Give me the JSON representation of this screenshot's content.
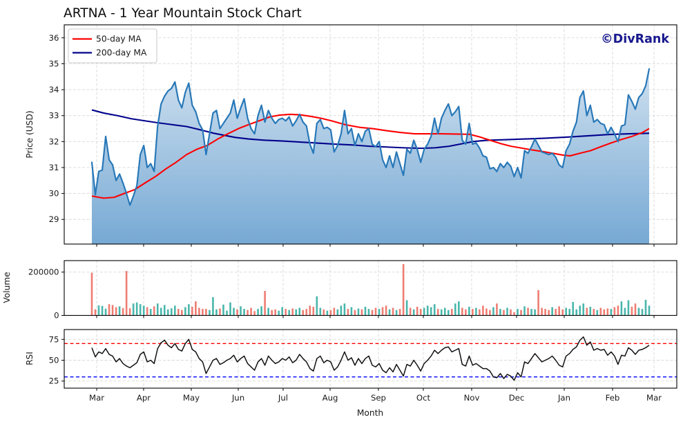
{
  "title": "ARTNA - 1 Year Mountain Stock Chart",
  "watermark": "©DivRank",
  "legend": [
    {
      "label": "50-day MA",
      "color": "#ff0000"
    },
    {
      "label": "200-day MA",
      "color": "#00008b"
    }
  ],
  "x_axis": {
    "label": "Month",
    "ticks": [
      {
        "label": "Mar",
        "t": 0.0087
      },
      {
        "label": "Apr",
        "t": 0.0929
      },
      {
        "label": "May",
        "t": 0.1784
      },
      {
        "label": "Jun",
        "t": 0.2627
      },
      {
        "label": "Jul",
        "t": 0.3432
      },
      {
        "label": "Aug",
        "t": 0.4275
      },
      {
        "label": "Sep",
        "t": 0.5142
      },
      {
        "label": "Oct",
        "t": 0.5948
      },
      {
        "label": "Nov",
        "t": 0.6815
      },
      {
        "label": "Dec",
        "t": 0.7621
      },
      {
        "label": "Jan",
        "t": 0.8476
      },
      {
        "label": "Feb",
        "t": 0.9343
      },
      {
        "label": "Mar",
        "t": 1.0087
      }
    ]
  },
  "chart_data": [
    {
      "type": "area",
      "name": "price",
      "ylabel": "Price (USD)",
      "ylim": [
        28.05,
        36.5
      ],
      "yticks": [
        29,
        30,
        31,
        32,
        33,
        34,
        35,
        36
      ],
      "price_line_color": "#2878b8",
      "fill_top": "#cfe0ef",
      "fill_bottom": "#76a9d4",
      "values": [
        31.2,
        29.95,
        30.85,
        30.9,
        32.2,
        31.3,
        31.1,
        30.5,
        30.75,
        30.4,
        30.0,
        29.55,
        29.9,
        30.3,
        31.5,
        31.85,
        31.0,
        31.15,
        30.85,
        32.6,
        33.45,
        33.75,
        33.95,
        34.05,
        34.3,
        33.6,
        33.3,
        33.9,
        34.25,
        33.4,
        33.15,
        32.7,
        32.45,
        31.5,
        32.3,
        33.1,
        33.2,
        32.5,
        32.7,
        32.9,
        33.1,
        33.6,
        32.9,
        33.3,
        33.65,
        32.9,
        32.5,
        32.3,
        33.0,
        33.4,
        32.75,
        33.2,
        32.9,
        32.7,
        32.85,
        32.9,
        32.8,
        32.95,
        32.6,
        32.8,
        33.05,
        32.75,
        32.6,
        31.9,
        31.55,
        32.7,
        32.85,
        32.5,
        32.55,
        32.45,
        31.6,
        31.85,
        32.3,
        33.2,
        32.3,
        32.5,
        31.85,
        32.3,
        32.0,
        32.4,
        32.5,
        31.9,
        31.8,
        32.0,
        31.3,
        31.0,
        31.45,
        31.0,
        31.6,
        31.15,
        30.7,
        31.7,
        31.55,
        32.05,
        31.7,
        31.2,
        31.7,
        31.9,
        32.2,
        32.9,
        32.3,
        32.9,
        33.2,
        33.45,
        33.0,
        33.15,
        33.35,
        32.05,
        31.9,
        32.7,
        31.9,
        31.95,
        31.75,
        31.45,
        31.4,
        30.95,
        31.0,
        30.85,
        31.15,
        31.0,
        31.2,
        31.05,
        30.65,
        31.0,
        30.6,
        31.65,
        31.55,
        31.8,
        32.1,
        31.85,
        31.6,
        31.55,
        31.5,
        31.55,
        31.4,
        31.1,
        31.0,
        31.65,
        31.9,
        32.4,
        32.75,
        33.7,
        33.95,
        33.0,
        33.4,
        32.75,
        32.85,
        32.7,
        32.65,
        32.3,
        32.55,
        32.3,
        32.0,
        32.6,
        32.65,
        33.8,
        33.55,
        33.25,
        33.7,
        33.85,
        34.15,
        34.8
      ],
      "ma50": {
        "name": "50-day MA",
        "color": "#ff0000",
        "points": [
          [
            0,
            29.9
          ],
          [
            0.021,
            29.82
          ],
          [
            0.04,
            29.85
          ],
          [
            0.058,
            30.0
          ],
          [
            0.077,
            30.15
          ],
          [
            0.095,
            30.4
          ],
          [
            0.114,
            30.65
          ],
          [
            0.133,
            30.95
          ],
          [
            0.151,
            31.2
          ],
          [
            0.17,
            31.5
          ],
          [
            0.188,
            31.7
          ],
          [
            0.207,
            31.85
          ],
          [
            0.226,
            32.1
          ],
          [
            0.244,
            32.3
          ],
          [
            0.263,
            32.5
          ],
          [
            0.281,
            32.65
          ],
          [
            0.3,
            32.8
          ],
          [
            0.319,
            32.95
          ],
          [
            0.337,
            33.02
          ],
          [
            0.356,
            33.05
          ],
          [
            0.374,
            33.03
          ],
          [
            0.393,
            32.97
          ],
          [
            0.411,
            32.9
          ],
          [
            0.43,
            32.8
          ],
          [
            0.455,
            32.65
          ],
          [
            0.48,
            32.55
          ],
          [
            0.504,
            32.5
          ],
          [
            0.529,
            32.42
          ],
          [
            0.554,
            32.35
          ],
          [
            0.579,
            32.3
          ],
          [
            0.628,
            32.3
          ],
          [
            0.678,
            32.28
          ],
          [
            0.696,
            32.18
          ],
          [
            0.715,
            32.05
          ],
          [
            0.734,
            31.92
          ],
          [
            0.752,
            31.82
          ],
          [
            0.771,
            31.75
          ],
          [
            0.789,
            31.68
          ],
          [
            0.808,
            31.62
          ],
          [
            0.827,
            31.55
          ],
          [
            0.845,
            31.48
          ],
          [
            0.858,
            31.45
          ],
          [
            0.876,
            31.55
          ],
          [
            0.895,
            31.65
          ],
          [
            0.913,
            31.8
          ],
          [
            0.932,
            31.95
          ],
          [
            0.95,
            32.08
          ],
          [
            0.969,
            32.2
          ],
          [
            0.988,
            32.35
          ],
          [
            1,
            32.5
          ]
        ]
      },
      "ma200": {
        "name": "200-day MA",
        "color": "#00008b",
        "points": [
          [
            0,
            33.22
          ],
          [
            0.021,
            33.1
          ],
          [
            0.046,
            33.0
          ],
          [
            0.071,
            32.88
          ],
          [
            0.095,
            32.8
          ],
          [
            0.12,
            32.72
          ],
          [
            0.145,
            32.65
          ],
          [
            0.17,
            32.58
          ],
          [
            0.195,
            32.45
          ],
          [
            0.219,
            32.32
          ],
          [
            0.238,
            32.24
          ],
          [
            0.257,
            32.16
          ],
          [
            0.281,
            32.1
          ],
          [
            0.312,
            32.05
          ],
          [
            0.343,
            32.02
          ],
          [
            0.374,
            31.98
          ],
          [
            0.405,
            31.94
          ],
          [
            0.436,
            31.9
          ],
          [
            0.467,
            31.87
          ],
          [
            0.498,
            31.82
          ],
          [
            0.529,
            31.79
          ],
          [
            0.56,
            31.76
          ],
          [
            0.591,
            31.74
          ],
          [
            0.616,
            31.76
          ],
          [
            0.641,
            31.82
          ],
          [
            0.665,
            31.92
          ],
          [
            0.684,
            32.0
          ],
          [
            0.709,
            32.05
          ],
          [
            0.74,
            32.07
          ],
          [
            0.777,
            32.1
          ],
          [
            0.814,
            32.13
          ],
          [
            0.851,
            32.17
          ],
          [
            0.889,
            32.22
          ],
          [
            0.926,
            32.27
          ],
          [
            0.963,
            32.3
          ],
          [
            1,
            32.32
          ]
        ]
      }
    },
    {
      "type": "bar",
      "name": "volume",
      "ylabel": "Volume",
      "ylim": [
        0,
        253000
      ],
      "yticks": [
        0,
        200000
      ],
      "up_color": "#49b6ab",
      "down_color": "#ee7d72",
      "values": [
        197000,
        28000,
        46000,
        44000,
        31000,
        52000,
        48000,
        38000,
        42000,
        34000,
        205000,
        33000,
        55000,
        60000,
        52000,
        45000,
        38000,
        30000,
        42000,
        55000,
        35000,
        48000,
        28000,
        33000,
        45000,
        30000,
        25000,
        38000,
        52000,
        40000,
        65000,
        35000,
        30000,
        30000,
        25000,
        84000,
        28000,
        32000,
        50000,
        22000,
        60000,
        35000,
        28000,
        42000,
        30000,
        25000,
        35000,
        20000,
        30000,
        42000,
        113000,
        35000,
        25000,
        28000,
        22000,
        38000,
        30000,
        25000,
        32000,
        28000,
        35000,
        25000,
        30000,
        45000,
        40000,
        88000,
        35000,
        28000,
        22000,
        25000,
        35000,
        28000,
        45000,
        55000,
        30000,
        38000,
        25000,
        32000,
        28000,
        40000,
        30000,
        25000,
        35000,
        30000,
        38000,
        45000,
        28000,
        35000,
        25000,
        30000,
        237000,
        70000,
        35000,
        28000,
        40000,
        30000,
        35000,
        45000,
        38000,
        52000,
        30000,
        28000,
        35000,
        25000,
        30000,
        55000,
        65000,
        35000,
        28000,
        40000,
        30000,
        35000,
        28000,
        45000,
        32000,
        25000,
        38000,
        55000,
        30000,
        25000,
        35000,
        28000,
        15000,
        30000,
        25000,
        42000,
        35000,
        30000,
        28000,
        117000,
        35000,
        30000,
        25000,
        38000,
        30000,
        42000,
        28000,
        35000,
        30000,
        62000,
        28000,
        45000,
        55000,
        35000,
        40000,
        30000,
        25000,
        35000,
        28000,
        32000,
        30000,
        38000,
        45000,
        65000,
        35000,
        70000,
        40000,
        55000,
        35000,
        30000,
        72000,
        45000
      ]
    },
    {
      "type": "line",
      "name": "rsi",
      "ylabel": "RSI",
      "ylim": [
        16.5,
        86.8
      ],
      "yticks": [
        25,
        50,
        75
      ],
      "line_color": "#111111",
      "overbought": {
        "value": 70,
        "color": "#ff0000"
      },
      "oversold": {
        "value": 30,
        "color": "#0000ff"
      },
      "values": [
        65,
        54,
        60,
        58,
        64,
        57,
        55,
        48,
        52,
        46,
        43,
        41,
        44,
        47,
        57,
        60,
        48,
        50,
        46,
        64,
        71,
        74,
        68,
        65,
        70,
        63,
        61,
        70,
        75,
        63,
        60,
        52,
        48,
        34,
        42,
        50,
        52,
        45,
        47,
        50,
        52,
        56,
        48,
        52,
        55,
        46,
        42,
        38,
        48,
        52,
        44,
        55,
        50,
        46,
        48,
        52,
        50,
        54,
        47,
        50,
        57,
        52,
        48,
        40,
        37,
        52,
        55,
        47,
        50,
        48,
        38,
        42,
        50,
        60,
        50,
        53,
        44,
        52,
        46,
        52,
        55,
        44,
        42,
        46,
        38,
        35,
        41,
        36,
        45,
        38,
        31,
        45,
        43,
        50,
        44,
        37,
        46,
        50,
        55,
        62,
        58,
        62,
        65,
        66,
        60,
        62,
        64,
        45,
        43,
        55,
        44,
        46,
        43,
        40,
        40,
        37,
        30,
        29,
        34,
        28,
        33,
        31,
        26,
        35,
        30,
        48,
        46,
        52,
        58,
        53,
        48,
        50,
        52,
        55,
        50,
        44,
        42,
        55,
        58,
        63,
        66,
        74,
        78,
        68,
        72,
        62,
        64,
        62,
        63,
        56,
        60,
        55,
        45,
        56,
        55,
        65,
        62,
        57,
        62,
        63,
        65,
        68
      ]
    }
  ]
}
